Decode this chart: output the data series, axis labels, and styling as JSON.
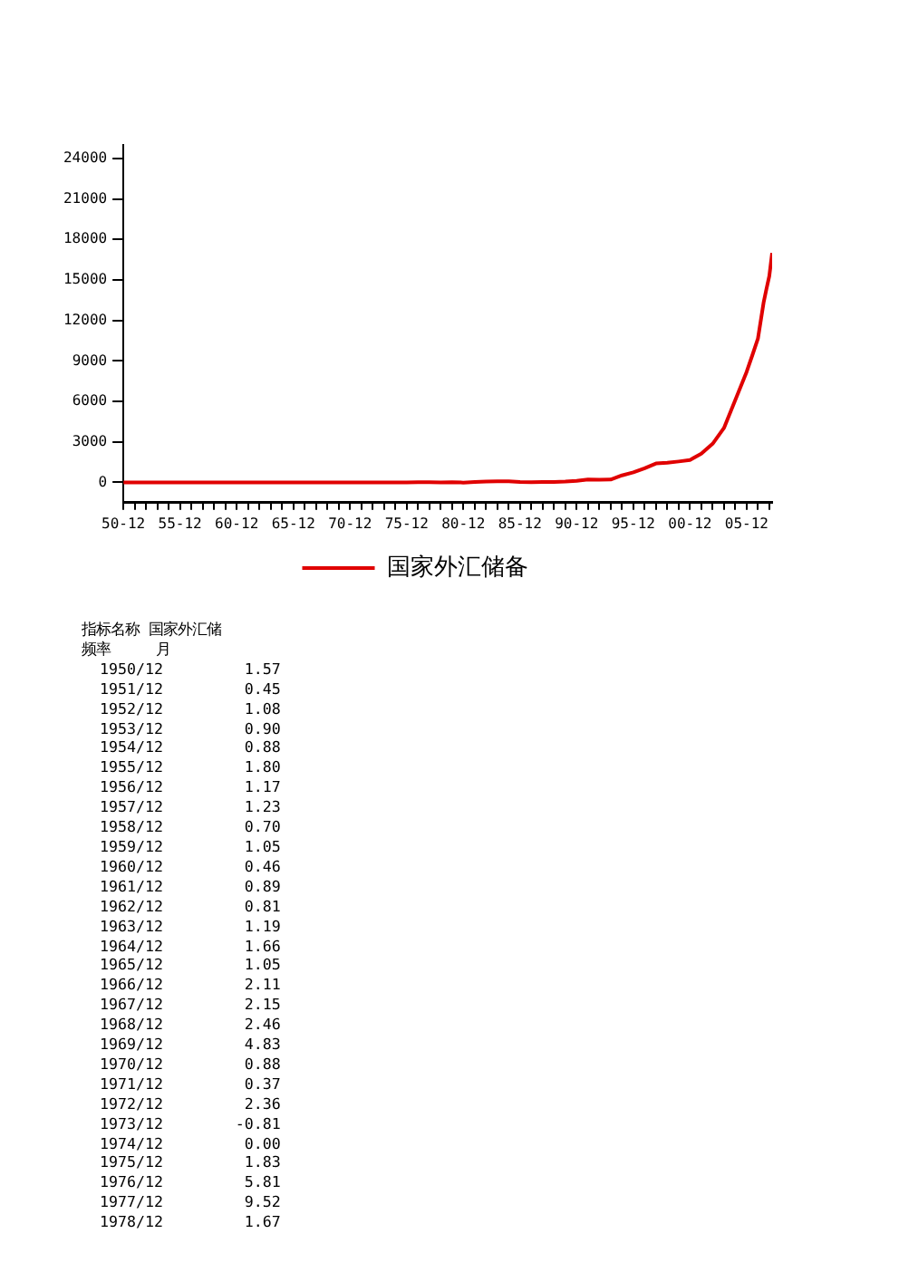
{
  "chart_data": {
    "type": "line",
    "x": [
      "1950-12",
      "1951-12",
      "1952-12",
      "1953-12",
      "1954-12",
      "1955-12",
      "1956-12",
      "1957-12",
      "1958-12",
      "1959-12",
      "1960-12",
      "1961-12",
      "1962-12",
      "1963-12",
      "1964-12",
      "1965-12",
      "1966-12",
      "1967-12",
      "1968-12",
      "1969-12",
      "1970-12",
      "1971-12",
      "1972-12",
      "1973-12",
      "1974-12",
      "1975-12",
      "1976-12",
      "1977-12",
      "1978-12",
      "1979-12",
      "1980-12",
      "1981-12",
      "1982-12",
      "1983-12",
      "1984-12",
      "1985-12",
      "1986-12",
      "1987-12",
      "1988-12",
      "1989-12",
      "1990-12",
      "1991-12",
      "1992-12",
      "1993-12",
      "1994-12",
      "1995-12",
      "1996-12",
      "1997-12",
      "1998-12",
      "1999-12",
      "2000-12",
      "2001-12",
      "2002-12",
      "2003-12",
      "2004-12",
      "2005-12",
      "2006-06",
      "2006-12",
      "2007-06",
      "2007-09",
      "2007-12",
      "2008-03"
    ],
    "series": [
      {
        "name": "国家外汇储备",
        "color": "#e00000",
        "values": [
          1.57,
          0.45,
          1.08,
          0.9,
          0.88,
          1.8,
          1.17,
          1.23,
          0.7,
          1.05,
          0.46,
          0.89,
          0.81,
          1.19,
          1.66,
          1.05,
          2.11,
          2.15,
          2.46,
          4.83,
          0.88,
          0.37,
          2.36,
          -0.81,
          0.0,
          1.83,
          5.81,
          9.52,
          1.67,
          8,
          -13,
          27,
          70,
          89,
          82,
          26,
          21,
          29,
          34,
          56,
          110,
          220,
          190,
          210,
          520,
          740,
          1050,
          1400,
          1450,
          1550,
          1660,
          2120,
          2860,
          4030,
          6100,
          8190,
          9410,
          10660,
          13330,
          14340,
          15280,
          17000
        ]
      }
    ],
    "xlim": [
      "1950-12",
      "2008-03"
    ],
    "xticks": [
      {
        "value": "1950-12",
        "label": "50-12"
      },
      {
        "value": "1951-12",
        "label": null
      },
      {
        "value": "1952-12",
        "label": null
      },
      {
        "value": "1953-12",
        "label": null
      },
      {
        "value": "1954-12",
        "label": null
      },
      {
        "value": "1955-12",
        "label": "55-12"
      },
      {
        "value": "1956-12",
        "label": null
      },
      {
        "value": "1957-12",
        "label": null
      },
      {
        "value": "1958-12",
        "label": null
      },
      {
        "value": "1959-12",
        "label": null
      },
      {
        "value": "1960-12",
        "label": "60-12"
      },
      {
        "value": "1961-12",
        "label": null
      },
      {
        "value": "1962-12",
        "label": null
      },
      {
        "value": "1963-12",
        "label": null
      },
      {
        "value": "1964-12",
        "label": null
      },
      {
        "value": "1965-12",
        "label": "65-12"
      },
      {
        "value": "1966-12",
        "label": null
      },
      {
        "value": "1967-12",
        "label": null
      },
      {
        "value": "1968-12",
        "label": null
      },
      {
        "value": "1969-12",
        "label": null
      },
      {
        "value": "1970-12",
        "label": "70-12"
      },
      {
        "value": "1971-12",
        "label": null
      },
      {
        "value": "1972-12",
        "label": null
      },
      {
        "value": "1973-12",
        "label": null
      },
      {
        "value": "1974-12",
        "label": null
      },
      {
        "value": "1975-12",
        "label": "75-12"
      },
      {
        "value": "1976-12",
        "label": null
      },
      {
        "value": "1977-12",
        "label": null
      },
      {
        "value": "1978-12",
        "label": null
      },
      {
        "value": "1979-12",
        "label": null
      },
      {
        "value": "1980-12",
        "label": "80-12"
      },
      {
        "value": "1981-12",
        "label": null
      },
      {
        "value": "1982-12",
        "label": null
      },
      {
        "value": "1983-12",
        "label": null
      },
      {
        "value": "1984-12",
        "label": null
      },
      {
        "value": "1985-12",
        "label": "85-12"
      },
      {
        "value": "1986-12",
        "label": null
      },
      {
        "value": "1987-12",
        "label": null
      },
      {
        "value": "1988-12",
        "label": null
      },
      {
        "value": "1989-12",
        "label": null
      },
      {
        "value": "1990-12",
        "label": "90-12"
      },
      {
        "value": "1991-12",
        "label": null
      },
      {
        "value": "1992-12",
        "label": null
      },
      {
        "value": "1993-12",
        "label": null
      },
      {
        "value": "1994-12",
        "label": null
      },
      {
        "value": "1995-12",
        "label": "95-12"
      },
      {
        "value": "1996-12",
        "label": null
      },
      {
        "value": "1997-12",
        "label": null
      },
      {
        "value": "1998-12",
        "label": null
      },
      {
        "value": "1999-12",
        "label": null
      },
      {
        "value": "2000-12",
        "label": "00-12"
      },
      {
        "value": "2001-12",
        "label": null
      },
      {
        "value": "2002-12",
        "label": null
      },
      {
        "value": "2003-12",
        "label": null
      },
      {
        "value": "2004-12",
        "label": null
      },
      {
        "value": "2005-12",
        "label": "05-12"
      },
      {
        "value": "2006-12",
        "label": null
      },
      {
        "value": "2007-12",
        "label": null
      }
    ],
    "ylim": [
      -1500,
      25000
    ],
    "yticks": [
      0,
      3000,
      6000,
      9000,
      12000,
      15000,
      18000,
      21000,
      24000
    ],
    "grid": false,
    "legend": "bottom",
    "marker": "none",
    "line_style": "solid",
    "annotations": [
      "指标名称 国家外汇储",
      "频率     月",
      "  1950/12         1.57",
      "  1951/12         0.45",
      "  1952/12         1.08",
      "  1953/12         0.90",
      "  1954/12         0.88",
      "  1955/12         1.80",
      "  1956/12         1.17",
      "  1957/12         1.23",
      "  1958/12         0.70",
      "  1959/12         1.05",
      "  1960/12         0.46",
      "  1961/12         0.89",
      "  1962/12         0.81",
      "  1963/12         1.19",
      "  1964/12         1.66",
      "  1965/12         1.05",
      "  1966/12         2.11",
      "  1967/12         2.15",
      "  1968/12         2.46",
      "  1969/12         4.83",
      "  1970/12         0.88",
      "  1971/12         0.37",
      "  1972/12         2.36",
      "  1973/12        -0.81",
      "  1974/12         0.00",
      "  1975/12         1.83",
      "  1976/12         5.81",
      "  1977/12         9.52",
      "  1978/12         1.67"
    ]
  }
}
